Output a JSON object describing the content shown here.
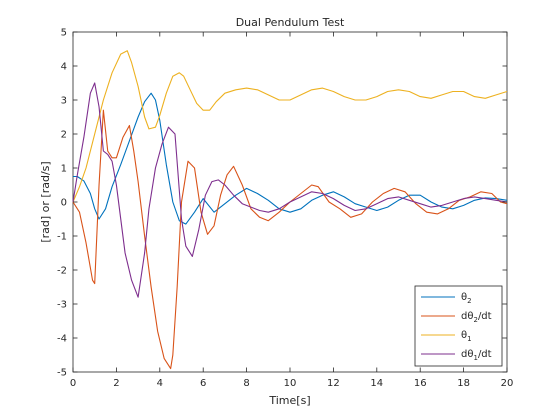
{
  "chart_data": {
    "type": "line",
    "title": "Dual Pendulum Test",
    "xlabel": "Time[s]",
    "ylabel": "[rad] or [rad/s]",
    "xlim": [
      0,
      20
    ],
    "ylim": [
      -5,
      5
    ],
    "xticks": [
      "0",
      "2",
      "4",
      "6",
      "8",
      "10",
      "12",
      "14",
      "16",
      "18",
      "20"
    ],
    "yticks": [
      "-5",
      "-4",
      "-3",
      "-2",
      "-1",
      "0",
      "1",
      "2",
      "3",
      "4",
      "5"
    ],
    "grid": false,
    "legend_position": "bottom-right",
    "series": [
      {
        "name": "θ2",
        "legend_base": "θ",
        "legend_sub": "2",
        "legend_suffix": "",
        "color": "#0072BD",
        "x": [
          0,
          0.2,
          0.5,
          0.8,
          1.0,
          1.2,
          1.5,
          1.8,
          2.2,
          2.6,
          3.0,
          3.3,
          3.6,
          3.8,
          4.0,
          4.3,
          4.6,
          4.9,
          5.2,
          5.6,
          6.0,
          6.5,
          7.0,
          7.5,
          8.0,
          8.5,
          9.0,
          9.5,
          10.0,
          10.5,
          11.0,
          11.5,
          12.0,
          12.5,
          13.0,
          13.5,
          14.0,
          14.5,
          15.0,
          15.5,
          16.0,
          16.5,
          17.0,
          17.5,
          18.0,
          18.5,
          19.0,
          19.5,
          20.0
        ],
        "y": [
          0.75,
          0.75,
          0.62,
          0.25,
          -0.2,
          -0.5,
          -0.2,
          0.45,
          1.1,
          1.8,
          2.5,
          2.95,
          3.2,
          3.0,
          2.4,
          1.1,
          0.0,
          -0.55,
          -0.65,
          -0.3,
          0.1,
          -0.3,
          -0.05,
          0.2,
          0.4,
          0.25,
          0.05,
          -0.2,
          -0.3,
          -0.2,
          0.05,
          0.2,
          0.3,
          0.15,
          -0.05,
          -0.15,
          -0.25,
          -0.15,
          0.05,
          0.2,
          0.2,
          0.0,
          -0.15,
          -0.2,
          -0.1,
          0.05,
          0.12,
          0.1,
          0.05
        ]
      },
      {
        "name": "dθ2/dt",
        "legend_base": "dθ",
        "legend_sub": "2",
        "legend_suffix": "/dt",
        "color": "#D95319",
        "x": [
          0,
          0.3,
          0.6,
          0.9,
          1.0,
          1.2,
          1.4,
          1.6,
          1.8,
          2.0,
          2.3,
          2.6,
          2.8,
          3.0,
          3.3,
          3.6,
          3.9,
          4.2,
          4.5,
          4.6,
          4.8,
          5.0,
          5.3,
          5.6,
          5.9,
          6.2,
          6.5,
          6.8,
          7.1,
          7.4,
          7.8,
          8.2,
          8.6,
          9.0,
          9.5,
          10.0,
          10.5,
          11.0,
          11.3,
          11.8,
          12.3,
          12.8,
          13.3,
          13.8,
          14.3,
          14.8,
          15.3,
          15.8,
          16.3,
          16.8,
          17.3,
          17.8,
          18.3,
          18.8,
          19.3,
          19.7,
          20.0
        ],
        "y": [
          0.0,
          -0.3,
          -1.2,
          -2.3,
          -2.4,
          0.5,
          2.7,
          1.5,
          1.3,
          1.3,
          1.9,
          2.25,
          1.5,
          0.6,
          -1.0,
          -2.5,
          -3.8,
          -4.6,
          -4.9,
          -4.5,
          -2.5,
          0.0,
          1.2,
          1.0,
          -0.3,
          -0.95,
          -0.7,
          0.2,
          0.8,
          1.05,
          0.5,
          -0.2,
          -0.45,
          -0.55,
          -0.3,
          0.0,
          0.25,
          0.5,
          0.45,
          0.0,
          -0.2,
          -0.45,
          -0.35,
          0.0,
          0.25,
          0.4,
          0.3,
          -0.05,
          -0.3,
          -0.35,
          -0.2,
          0.05,
          0.15,
          0.3,
          0.25,
          0.0,
          -0.05
        ]
      },
      {
        "name": "θ1",
        "legend_base": "θ",
        "legend_sub": "1",
        "legend_suffix": "",
        "color": "#EDB120",
        "x": [
          0,
          0.3,
          0.6,
          1.0,
          1.4,
          1.8,
          2.2,
          2.5,
          2.7,
          3.0,
          3.3,
          3.5,
          3.8,
          4.0,
          4.3,
          4.6,
          4.9,
          5.1,
          5.4,
          5.7,
          6.0,
          6.3,
          6.6,
          7.0,
          7.5,
          8.0,
          8.5,
          9.0,
          9.5,
          10.0,
          10.5,
          11.0,
          11.5,
          12.0,
          12.5,
          13.0,
          13.5,
          14.0,
          14.5,
          15.0,
          15.5,
          16.0,
          16.5,
          17.0,
          17.5,
          18.0,
          18.5,
          19.0,
          19.5,
          20.0
        ],
        "y": [
          0.0,
          0.45,
          1.0,
          2.0,
          3.0,
          3.8,
          4.35,
          4.45,
          4.1,
          3.4,
          2.5,
          2.15,
          2.2,
          2.55,
          3.2,
          3.7,
          3.8,
          3.7,
          3.3,
          2.9,
          2.7,
          2.7,
          2.95,
          3.2,
          3.3,
          3.35,
          3.3,
          3.15,
          3.0,
          3.0,
          3.15,
          3.3,
          3.35,
          3.25,
          3.1,
          3.0,
          3.0,
          3.1,
          3.25,
          3.3,
          3.25,
          3.1,
          3.05,
          3.15,
          3.25,
          3.25,
          3.1,
          3.05,
          3.15,
          3.25
        ]
      },
      {
        "name": "dθ1/dt",
        "legend_base": "dθ",
        "legend_sub": "1",
        "legend_suffix": "/dt",
        "color": "#7E2F8E",
        "x": [
          0,
          0.2,
          0.5,
          0.8,
          1.0,
          1.2,
          1.4,
          1.6,
          1.8,
          2.0,
          2.2,
          2.4,
          2.7,
          3.0,
          3.3,
          3.5,
          3.8,
          4.1,
          4.4,
          4.7,
          5.0,
          5.2,
          5.5,
          5.8,
          6.1,
          6.4,
          6.7,
          7.0,
          7.4,
          7.8,
          8.2,
          8.6,
          9.0,
          9.5,
          10.0,
          10.5,
          11.0,
          11.5,
          12.0,
          12.5,
          13.0,
          13.5,
          14.0,
          14.5,
          15.0,
          15.5,
          16.0,
          16.5,
          17.0,
          17.5,
          18.0,
          18.5,
          19.0,
          19.5,
          20.0
        ],
        "y": [
          0.0,
          0.8,
          1.9,
          3.2,
          3.5,
          2.8,
          1.5,
          1.4,
          1.2,
          0.5,
          -0.5,
          -1.5,
          -2.3,
          -2.8,
          -1.5,
          -0.2,
          1.0,
          1.7,
          2.2,
          2.0,
          -0.5,
          -1.3,
          -1.6,
          -0.8,
          0.2,
          0.6,
          0.65,
          0.5,
          0.2,
          -0.05,
          -0.15,
          -0.25,
          -0.3,
          -0.2,
          0.0,
          0.15,
          0.3,
          0.25,
          0.1,
          -0.1,
          -0.25,
          -0.2,
          -0.05,
          0.1,
          0.15,
          0.05,
          -0.05,
          -0.15,
          -0.1,
          0.0,
          0.1,
          0.15,
          0.1,
          0.05,
          0.0
        ]
      }
    ]
  }
}
